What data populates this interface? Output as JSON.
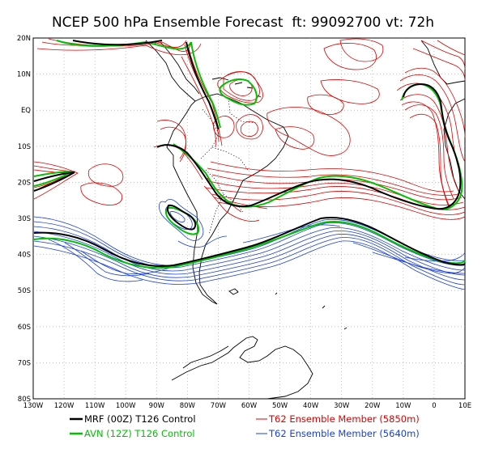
{
  "title": "NCEP 500 hPa Ensemble Forecast  ft: 99092700 vt: 72h",
  "map": {
    "lon_labels": [
      "130W",
      "120W",
      "110W",
      "100W",
      "90W",
      "80W",
      "70W",
      "60W",
      "50W",
      "40W",
      "30W",
      "20W",
      "10W",
      "0",
      "10E"
    ],
    "lat_labels": [
      "20N",
      "10N",
      "EQ",
      "10S",
      "20S",
      "30S",
      "40S",
      "50S",
      "60S",
      "70S",
      "80S"
    ]
  },
  "legend": [
    {
      "label": "MRF (00Z) T126 Control",
      "color": "#000000"
    },
    {
      "label": "AVN (12Z) T126 Control",
      "color": "#00c000"
    },
    {
      "label": "T62 Ensemble Member (5850m)",
      "color": "#e00000"
    },
    {
      "label": "T62 Ensemble Member (5640m)",
      "color": "#1a3fe0"
    }
  ],
  "colors": {
    "mrf": "#000000",
    "avn": "#00c000",
    "red_members": "#e00000",
    "blue_members": "#1a3fe0",
    "grid": "#9a9a9a"
  }
}
